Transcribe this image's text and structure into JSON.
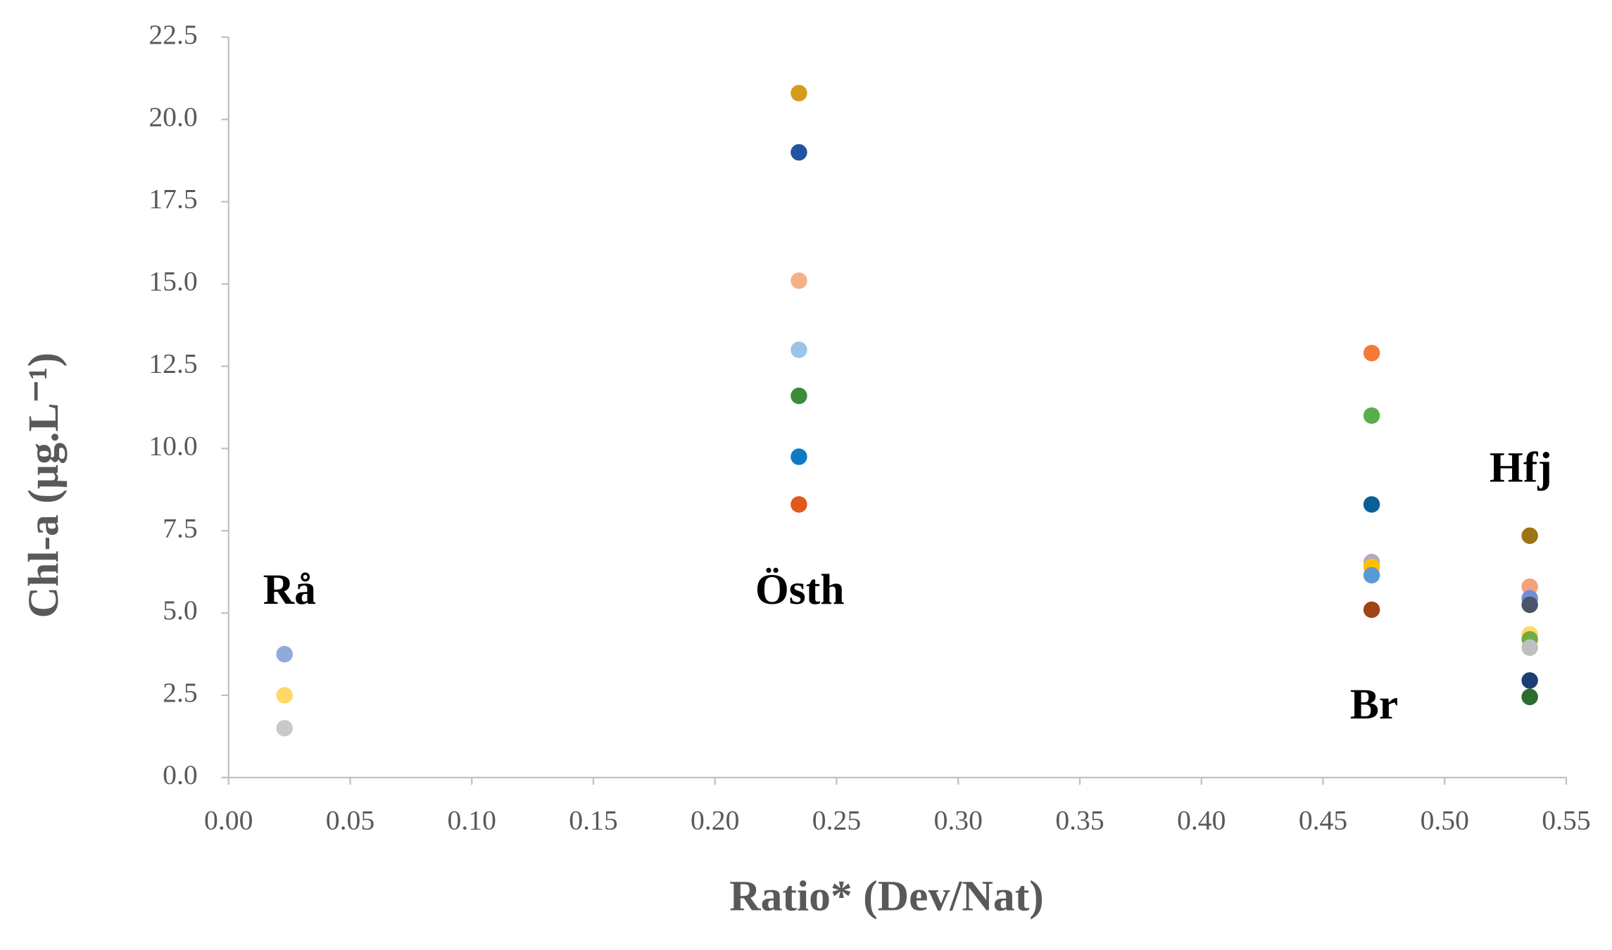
{
  "chart_data": {
    "type": "scatter",
    "xlabel": "Ratio* (Dev/Nat)",
    "ylabel": "Chl-a (µg.L⁻¹)",
    "xlim": [
      0,
      0.55
    ],
    "xticks": [
      {
        "value": 0,
        "label": "0.00"
      },
      {
        "value": 0.05,
        "label": "0.05"
      },
      {
        "value": 0.1,
        "label": "0.10"
      },
      {
        "value": 0.15,
        "label": "0.15"
      },
      {
        "value": 0.2,
        "label": "0.20"
      },
      {
        "value": 0.25,
        "label": "0.25"
      },
      {
        "value": 0.3,
        "label": "0.30"
      },
      {
        "value": 0.35,
        "label": "0.35"
      },
      {
        "value": 0.4,
        "label": "0.40"
      },
      {
        "value": 0.45,
        "label": "0.45"
      },
      {
        "value": 0.5,
        "label": "0.50"
      },
      {
        "value": 0.55,
        "label": "0.55"
      }
    ],
    "ylim": [
      0,
      22.5
    ],
    "yticks": [
      {
        "value": 0,
        "label": "0.0"
      },
      2.5,
      {
        "value": 5,
        "label": "5.0"
      },
      7.5,
      {
        "value": 10,
        "label": "10.0"
      },
      12.5,
      {
        "value": 15,
        "label": "15.0"
      },
      17.5,
      {
        "value": 20,
        "label": "20.0"
      },
      22.5
    ],
    "annotations": [
      "Rå",
      "Östh",
      "Br",
      "Hfj"
    ],
    "points": [
      {
        "x": 0.023,
        "y": 3.75,
        "color": "#8faadc"
      },
      {
        "x": 0.023,
        "y": 2.5,
        "color": "#ffd966"
      },
      {
        "x": 0.023,
        "y": 1.5,
        "color": "#c9c9c9"
      },
      {
        "x": 0.2345,
        "y": 20.8,
        "color": "#d69a1c"
      },
      {
        "x": 0.2345,
        "y": 19.0,
        "color": "#2253a0"
      },
      {
        "x": 0.2345,
        "y": 15.1,
        "color": "#f4b183"
      },
      {
        "x": 0.2345,
        "y": 13.0,
        "color": "#9dc3e6"
      },
      {
        "x": 0.2345,
        "y": 11.6,
        "color": "#3a8c3a"
      },
      {
        "x": 0.2345,
        "y": 9.75,
        "color": "#0e7ac4"
      },
      {
        "x": 0.2345,
        "y": 8.3,
        "color": "#e2581c"
      },
      {
        "x": 0.47,
        "y": 12.9,
        "color": "#f47a3a"
      },
      {
        "x": 0.47,
        "y": 11.0,
        "color": "#5aae4a"
      },
      {
        "x": 0.47,
        "y": 8.3,
        "color": "#0b5f96"
      },
      {
        "x": 0.47,
        "y": 6.55,
        "color": "#b4a8c8"
      },
      {
        "x": 0.47,
        "y": 6.4,
        "color": "#ffc000"
      },
      {
        "x": 0.47,
        "y": 6.15,
        "color": "#5b9bd5"
      },
      {
        "x": 0.47,
        "y": 5.1,
        "color": "#a0441a"
      },
      {
        "x": 0.535,
        "y": 7.35,
        "color": "#9e7412"
      },
      {
        "x": 0.535,
        "y": 5.8,
        "color": "#f4a27a"
      },
      {
        "x": 0.535,
        "y": 5.45,
        "color": "#6f8fd6"
      },
      {
        "x": 0.535,
        "y": 5.25,
        "color": "#4a5568"
      },
      {
        "x": 0.535,
        "y": 4.35,
        "color": "#ffd966"
      },
      {
        "x": 0.535,
        "y": 4.2,
        "color": "#70ad47"
      },
      {
        "x": 0.535,
        "y": 3.95,
        "color": "#bfbfbf"
      },
      {
        "x": 0.535,
        "y": 2.95,
        "color": "#1c3f73"
      },
      {
        "x": 0.535,
        "y": 2.45,
        "color": "#2e6b2e"
      }
    ]
  }
}
